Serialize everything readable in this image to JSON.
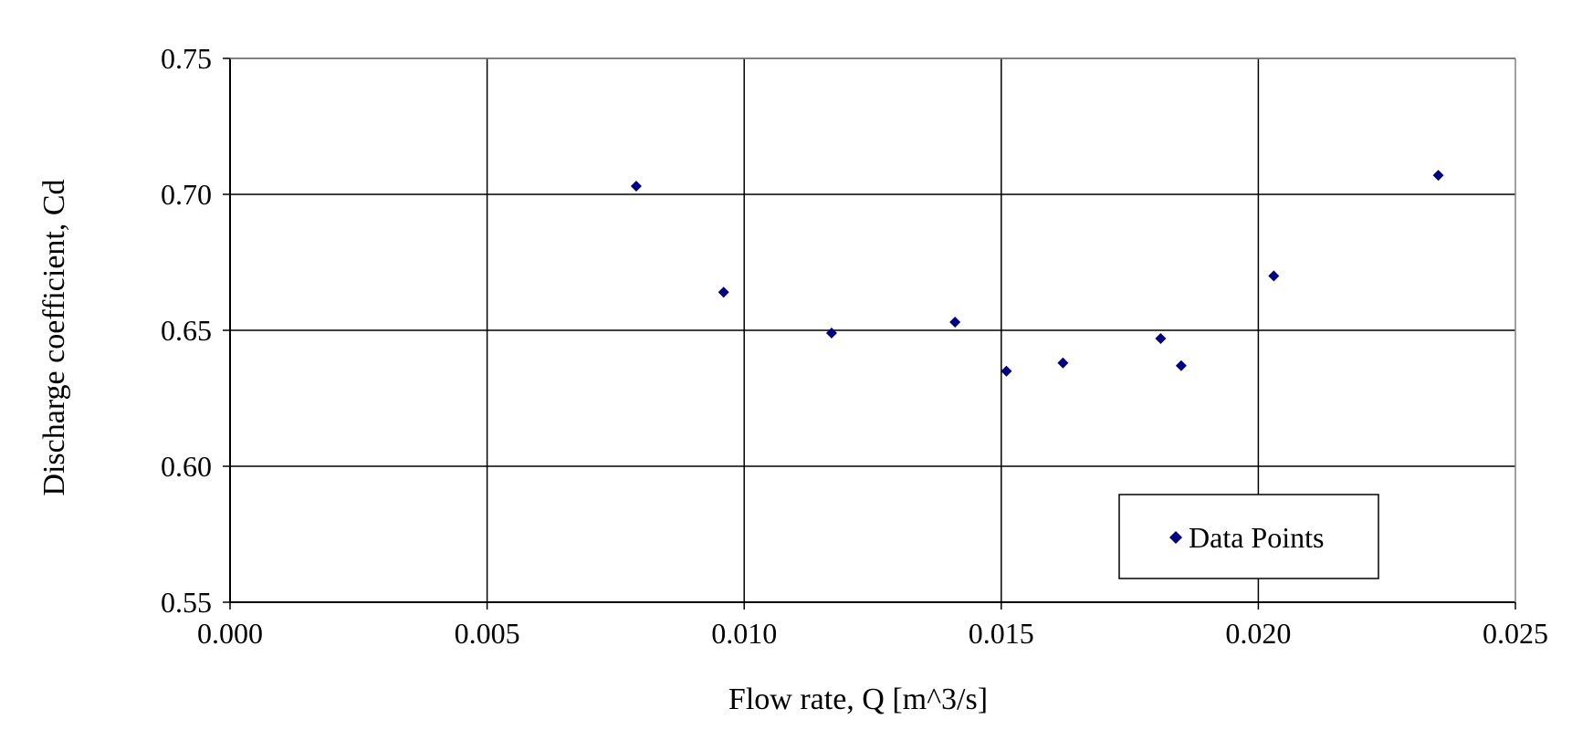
{
  "chart_data": {
    "type": "scatter",
    "title": "",
    "xlabel": "Flow rate, Q [m^3/s]",
    "ylabel": "Discharge coefficient, Cd",
    "xlim": [
      0.0,
      0.025
    ],
    "ylim": [
      0.55,
      0.75
    ],
    "x_ticks": [
      "0.000",
      "0.005",
      "0.010",
      "0.015",
      "0.020",
      "0.025"
    ],
    "y_ticks": [
      "0.55",
      "0.60",
      "0.65",
      "0.70",
      "0.75"
    ],
    "x_tick_values": [
      0.0,
      0.005,
      0.01,
      0.015,
      0.02,
      0.025
    ],
    "y_tick_values": [
      0.55,
      0.6,
      0.65,
      0.7,
      0.75
    ],
    "grid": true,
    "legend": "bottom-right",
    "series": [
      {
        "name": "Data Points",
        "marker": "diamond",
        "color": "#000080",
        "x": [
          0.0079,
          0.0096,
          0.0117,
          0.0141,
          0.0151,
          0.0162,
          0.0181,
          0.0185,
          0.0203,
          0.0235
        ],
        "y": [
          0.703,
          0.664,
          0.649,
          0.653,
          0.635,
          0.638,
          0.647,
          0.637,
          0.67,
          0.707
        ]
      }
    ]
  }
}
